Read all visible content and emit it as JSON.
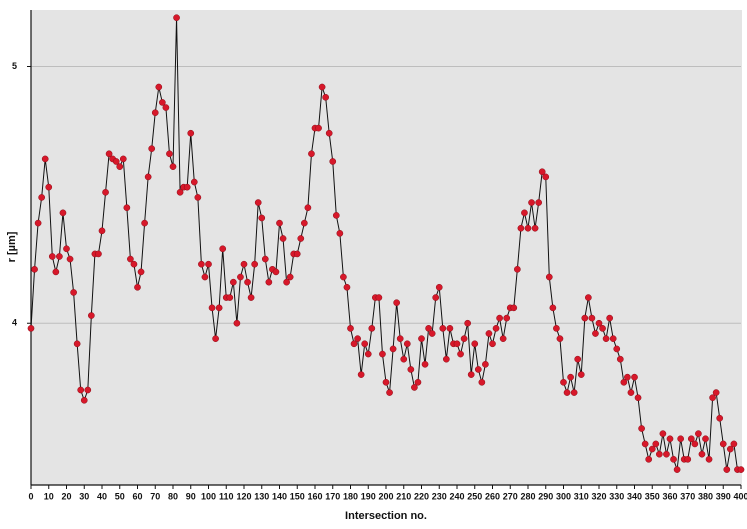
{
  "chart_data": {
    "type": "line",
    "x_label": "Intersection no.",
    "y_label": "r [µm]",
    "xlim": [
      0,
      400
    ],
    "ylim": [
      3.37,
      5.22
    ],
    "xticks": [
      0,
      10,
      20,
      30,
      40,
      50,
      60,
      70,
      80,
      90,
      100,
      110,
      120,
      130,
      140,
      150,
      160,
      170,
      180,
      190,
      200,
      210,
      220,
      230,
      240,
      250,
      260,
      270,
      280,
      290,
      300,
      310,
      320,
      330,
      340,
      350,
      360,
      370,
      380,
      390,
      400
    ],
    "yticks": [
      4,
      5
    ],
    "grid": true,
    "line_color": "#111111",
    "marker_color": "#d7182a",
    "x": [
      0,
      2,
      4,
      6,
      8,
      10,
      12,
      14,
      16,
      18,
      20,
      22,
      24,
      26,
      28,
      30,
      32,
      34,
      36,
      38,
      40,
      42,
      44,
      46,
      48,
      50,
      52,
      54,
      56,
      58,
      60,
      62,
      64,
      66,
      68,
      70,
      72,
      74,
      76,
      78,
      80,
      82,
      84,
      86,
      88,
      90,
      92,
      94,
      96,
      98,
      100,
      102,
      104,
      106,
      108,
      110,
      112,
      114,
      116,
      118,
      120,
      122,
      124,
      126,
      128,
      130,
      132,
      134,
      136,
      138,
      140,
      142,
      144,
      146,
      148,
      150,
      152,
      154,
      156,
      158,
      160,
      162,
      164,
      166,
      168,
      170,
      172,
      174,
      176,
      178,
      180,
      182,
      184,
      186,
      188,
      190,
      192,
      194,
      196,
      198,
      200,
      202,
      204,
      206,
      208,
      210,
      212,
      214,
      216,
      218,
      220,
      222,
      224,
      226,
      228,
      230,
      232,
      234,
      236,
      238,
      240,
      242,
      244,
      246,
      248,
      250,
      252,
      254,
      256,
      258,
      260,
      262,
      264,
      266,
      268,
      270,
      272,
      274,
      276,
      278,
      280,
      282,
      284,
      286,
      288,
      290,
      292,
      294,
      296,
      298,
      300,
      302,
      304,
      306,
      308,
      310,
      312,
      314,
      316,
      318,
      320,
      322,
      324,
      326,
      328,
      330,
      332,
      334,
      336,
      338,
      340,
      342,
      344,
      346,
      348,
      350,
      352,
      354,
      356,
      358,
      360,
      362,
      364,
      366,
      368,
      370,
      372,
      374,
      376,
      378,
      380,
      382,
      384,
      386,
      388,
      390,
      392,
      394,
      396,
      398,
      400
    ],
    "values": [
      3.98,
      4.21,
      4.39,
      4.49,
      4.64,
      4.53,
      4.26,
      4.2,
      4.26,
      4.43,
      4.29,
      4.25,
      4.12,
      3.92,
      3.74,
      3.7,
      3.74,
      4.03,
      4.27,
      4.27,
      4.36,
      4.51,
      4.66,
      4.64,
      4.63,
      4.61,
      4.64,
      4.45,
      4.25,
      4.23,
      4.14,
      4.2,
      4.39,
      4.57,
      4.68,
      4.82,
      4.92,
      4.86,
      4.84,
      4.66,
      4.61,
      5.19,
      4.51,
      4.53,
      4.53,
      4.74,
      4.55,
      4.49,
      4.23,
      4.18,
      4.23,
      4.06,
      3.94,
      4.06,
      4.29,
      4.1,
      4.1,
      4.16,
      4.0,
      4.18,
      4.23,
      4.16,
      4.1,
      4.23,
      4.47,
      4.41,
      4.25,
      4.16,
      4.21,
      4.2,
      4.39,
      4.33,
      4.16,
      4.18,
      4.27,
      4.27,
      4.33,
      4.39,
      4.45,
      4.66,
      4.76,
      4.76,
      4.92,
      4.88,
      4.74,
      4.63,
      4.42,
      4.35,
      4.18,
      4.14,
      3.98,
      3.92,
      3.94,
      3.8,
      3.92,
      3.88,
      3.98,
      4.1,
      4.1,
      3.88,
      3.77,
      3.73,
      3.9,
      4.08,
      3.94,
      3.86,
      3.92,
      3.82,
      3.75,
      3.77,
      3.94,
      3.84,
      3.98,
      3.96,
      4.1,
      4.14,
      3.98,
      3.86,
      3.98,
      3.92,
      3.92,
      3.88,
      3.94,
      4.0,
      3.8,
      3.92,
      3.82,
      3.77,
      3.84,
      3.96,
      3.92,
      3.98,
      4.02,
      3.94,
      4.02,
      4.06,
      4.06,
      4.21,
      4.37,
      4.43,
      4.37,
      4.47,
      4.37,
      4.47,
      4.59,
      4.57,
      4.18,
      4.06,
      3.98,
      3.94,
      3.77,
      3.73,
      3.79,
      3.73,
      3.86,
      3.8,
      4.02,
      4.1,
      4.02,
      3.96,
      4.0,
      3.98,
      3.94,
      4.02,
      3.94,
      3.9,
      3.86,
      3.77,
      3.79,
      3.73,
      3.79,
      3.71,
      3.59,
      3.53,
      3.47,
      3.51,
      3.53,
      3.49,
      3.57,
      3.49,
      3.55,
      3.47,
      3.43,
      3.55,
      3.47,
      3.47,
      3.55,
      3.53,
      3.57,
      3.49,
      3.55,
      3.47,
      3.71,
      3.73,
      3.63,
      3.53,
      3.43,
      3.51,
      3.53,
      3.43,
      3.43
    ]
  }
}
